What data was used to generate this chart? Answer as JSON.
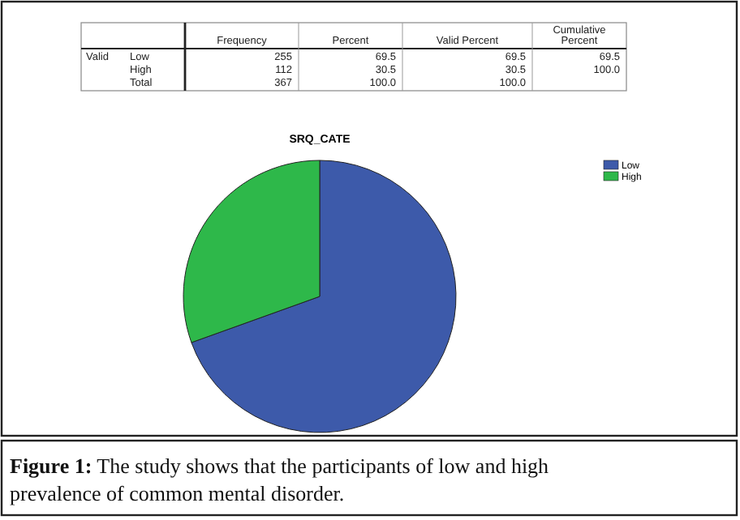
{
  "chart_data": [
    {
      "type": "other",
      "categories": [
        "Frequency",
        "Percent",
        "Valid Percent",
        "Cumulative Percent"
      ],
      "y_categories": [
        "Low",
        "High",
        "Total"
      ],
      "annotations": [
        "Valid"
      ],
      "cell_labels": [
        [
          "255",
          "69.5",
          "69.5",
          "69.5"
        ],
        [
          "112",
          "30.5",
          "30.5",
          "100.0"
        ],
        [
          "367",
          "100.0",
          "100.0",
          null
        ]
      ]
    },
    {
      "type": "pie",
      "title": "SRQ_CATE",
      "categories": [
        "Low",
        "High"
      ],
      "values": [
        69.5,
        30.5
      ],
      "colors": [
        "#3d5aaa",
        "#2eb84a"
      ],
      "legend": "top right",
      "annotations": [
        "Figure 1: The study shows that the participants of low and high prevalence of common mental disorder."
      ]
    }
  ]
}
